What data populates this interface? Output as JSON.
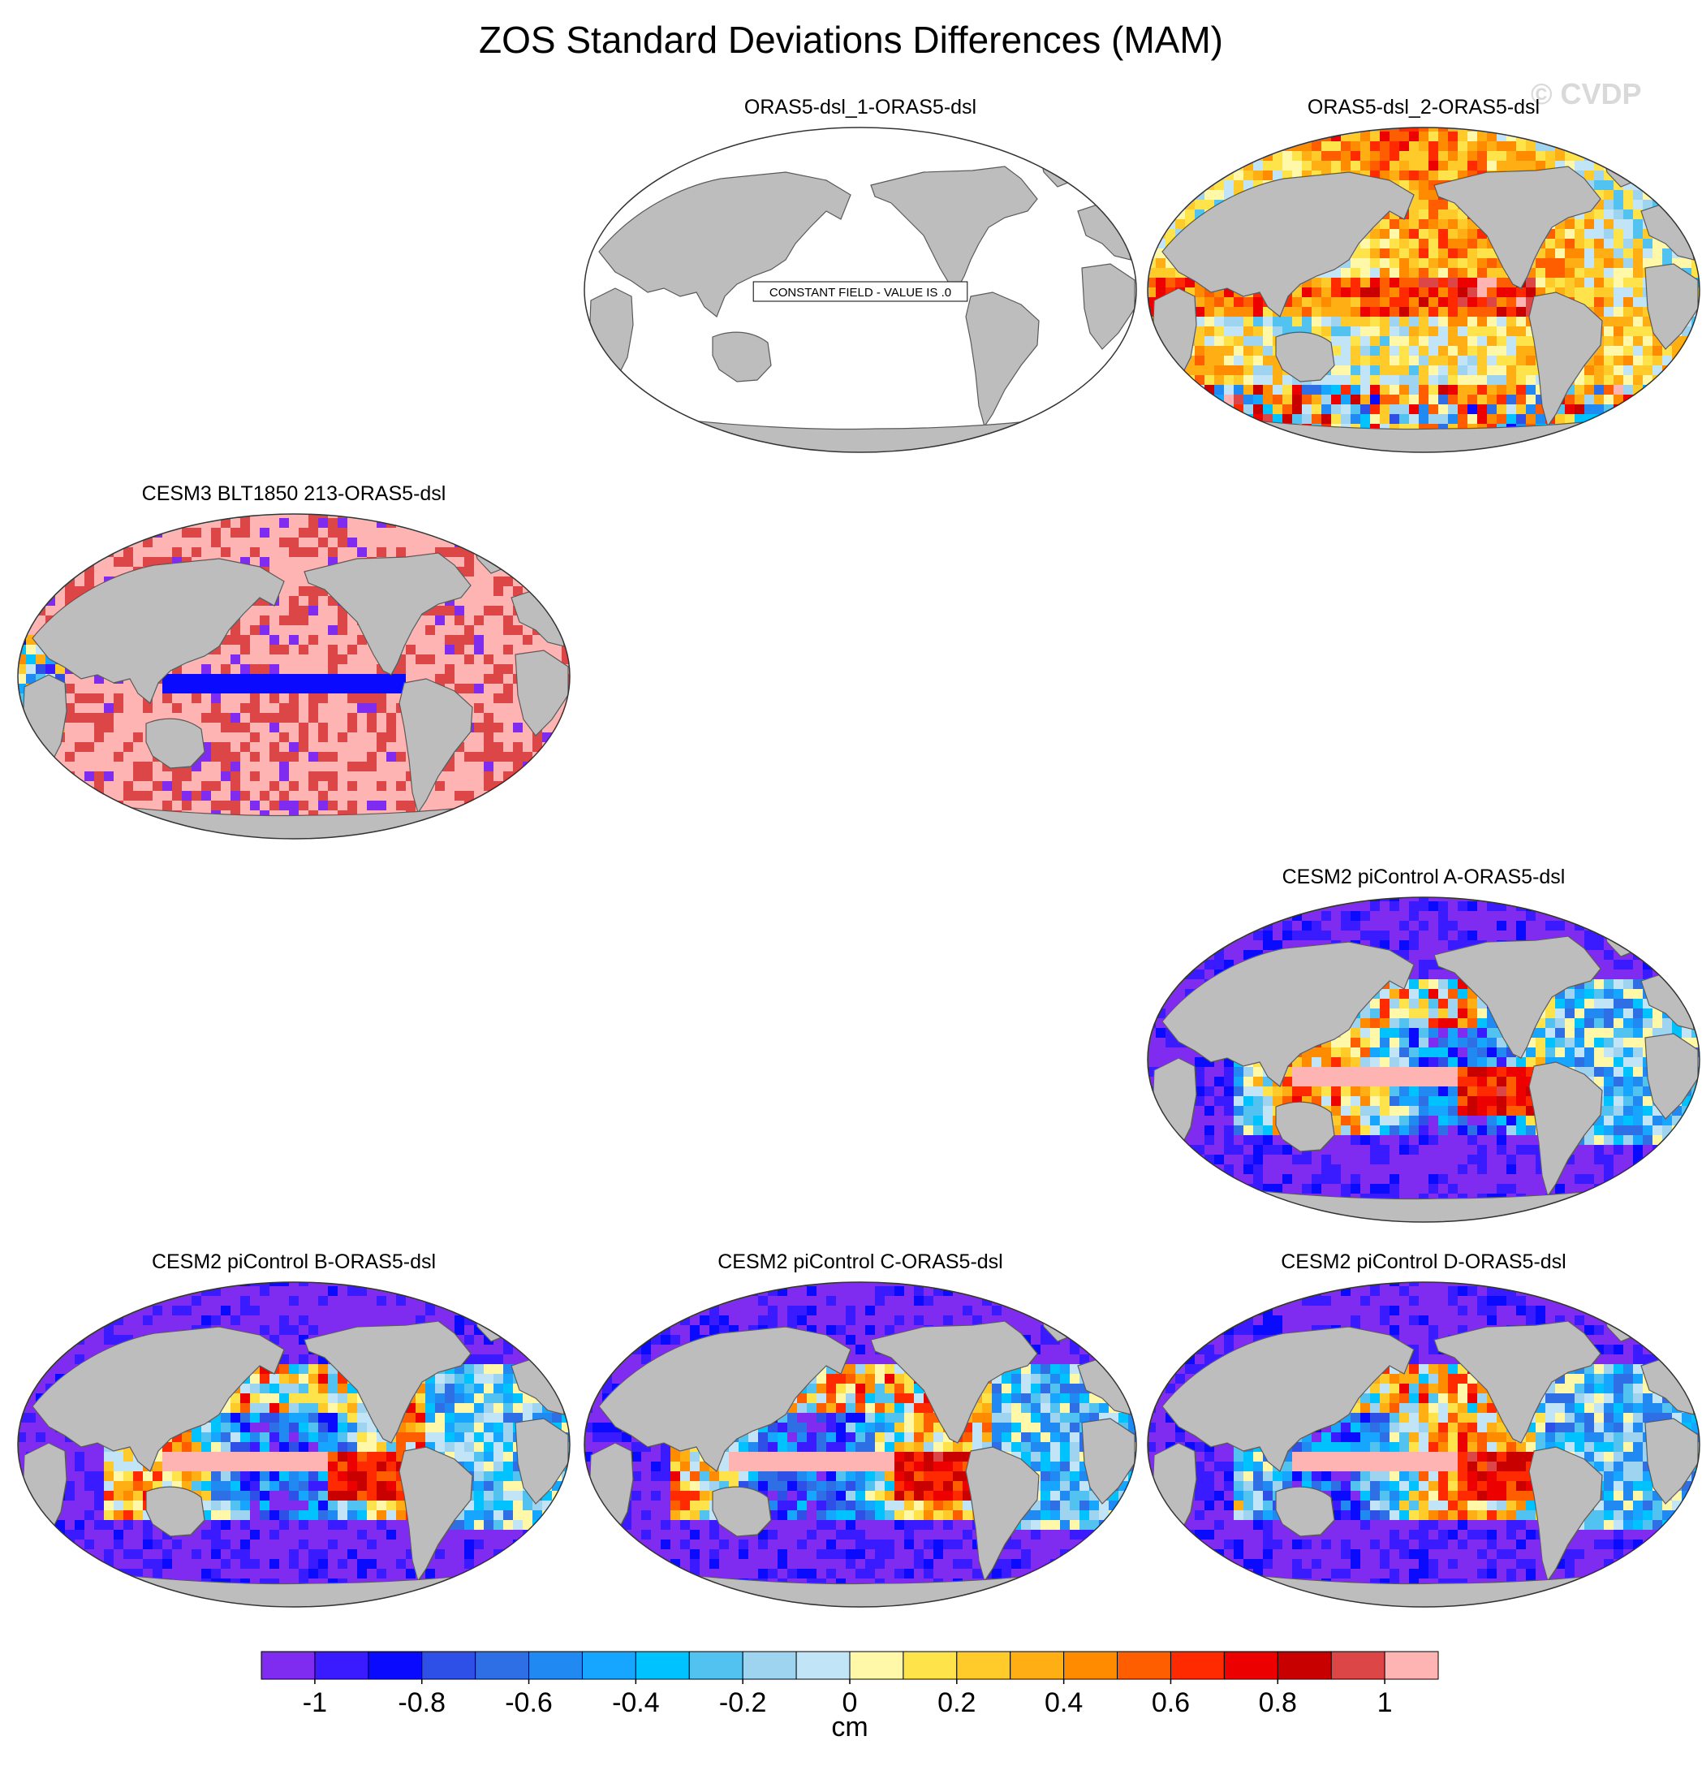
{
  "figure": {
    "title": "ZOS Standard Deviations Differences (MAM)",
    "watermark": "© CVDP",
    "units": "cm"
  },
  "panels": [
    {
      "id": "p1",
      "title": "ORAS5-dsl_1-ORAS5-dsl",
      "pattern": "constant",
      "note": "CONSTANT FIELD - VALUE IS .0"
    },
    {
      "id": "p2",
      "title": "ORAS5-dsl_2-ORAS5-dsl",
      "pattern": "mixed_warm"
    },
    {
      "id": "p3",
      "title": "CESM3 BLT1850 213-ORAS5-dsl",
      "pattern": "high_pink"
    },
    {
      "id": "p4",
      "title": "CESM2 piControl A-ORAS5-dsl",
      "pattern": "low_purple"
    },
    {
      "id": "p5",
      "title": "CESM2 piControl B-ORAS5-dsl",
      "pattern": "low_purple"
    },
    {
      "id": "p6",
      "title": "CESM2 piControl C-ORAS5-dsl",
      "pattern": "low_purple"
    },
    {
      "id": "p7",
      "title": "CESM2 piControl D-ORAS5-dsl",
      "pattern": "low_purple"
    }
  ],
  "colorbar": {
    "colors": [
      "#7f2bf0",
      "#3a1aff",
      "#0a0aff",
      "#2f50e6",
      "#2f6fe6",
      "#2189f2",
      "#16a6ff",
      "#00c2ff",
      "#52c3f0",
      "#9ed4f0",
      "#c2e4f7",
      "#fff8a8",
      "#ffe34a",
      "#ffcb2b",
      "#ffae14",
      "#ff8c00",
      "#ff5e00",
      "#ff2a00",
      "#ec0000",
      "#c80000",
      "#dc4646",
      "#ffb4b4"
    ],
    "tick_labels": [
      "-1",
      "-0.8",
      "-0.6",
      "-0.4",
      "-0.2",
      "0",
      "0.2",
      "0.4",
      "0.6",
      "0.8",
      "1"
    ],
    "label": "cm"
  }
}
